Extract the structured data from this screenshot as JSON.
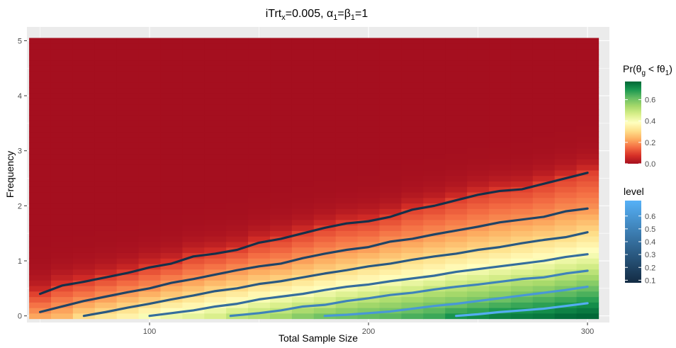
{
  "chart_data": {
    "type": "heatmap",
    "title": {
      "prefix": "iTrt",
      "prefix_sub": "x",
      "mid": "=0.005, ",
      "alpha": "α",
      "alpha_sub": "1",
      "eq": "=",
      "beta": "β",
      "beta_sub": "1",
      "suffix": "=1"
    },
    "xlabel": "Total Sample Size",
    "ylabel": "Frequency",
    "xlim": [
      44,
      310
    ],
    "ylim": [
      -0.12,
      5.25
    ],
    "x_ticks": [
      100,
      200,
      300
    ],
    "y_ticks": [
      0,
      1,
      2,
      3,
      4,
      5
    ],
    "grid": true,
    "x_values": [
      50,
      60,
      70,
      80,
      90,
      100,
      110,
      120,
      130,
      140,
      150,
      160,
      170,
      180,
      190,
      200,
      210,
      220,
      230,
      240,
      250,
      260,
      270,
      280,
      290,
      300
    ],
    "y_step": 0.1,
    "y_max": 5.0,
    "fill_legend": {
      "title": {
        "pre": "Pr(",
        "theta": "θ",
        "theta_sub": "g",
        "lt": " < ",
        "f": "f",
        "theta2": "θ",
        "theta2_sub": "1",
        "post": ")"
      },
      "ticks": [
        0.0,
        0.2,
        0.4,
        0.6
      ],
      "range": [
        0,
        0.77
      ],
      "colors": [
        "#A50F1F",
        "#D73027",
        "#F46D43",
        "#FDAE61",
        "#FEE08B",
        "#FFFFBF",
        "#D9EF8B",
        "#A6D96A",
        "#66BD63",
        "#1A9850",
        "#006837"
      ]
    },
    "contour_legend": {
      "title": "level",
      "ticks": [
        0.1,
        0.2,
        0.3,
        0.4,
        0.5,
        0.6
      ],
      "range": [
        0.08,
        0.72
      ],
      "color_low": "#132B43",
      "color_high": "#56B1F7"
    },
    "contours": [
      {
        "level": 0.1,
        "x": [
          50,
          60,
          70,
          80,
          90,
          100,
          110,
          120,
          130,
          140,
          150,
          160,
          170,
          180,
          190,
          200,
          210,
          220,
          230,
          240,
          250,
          260,
          270,
          280,
          290,
          300
        ],
        "y": [
          0.4,
          0.55,
          0.62,
          0.7,
          0.78,
          0.88,
          0.95,
          1.08,
          1.13,
          1.2,
          1.33,
          1.4,
          1.5,
          1.6,
          1.68,
          1.72,
          1.8,
          1.93,
          2.0,
          2.1,
          2.2,
          2.27,
          2.3,
          2.4,
          2.5,
          2.6
        ]
      },
      {
        "level": 0.2,
        "x": [
          50,
          60,
          70,
          80,
          90,
          100,
          110,
          120,
          130,
          140,
          150,
          160,
          170,
          180,
          190,
          200,
          210,
          220,
          230,
          240,
          250,
          260,
          270,
          280,
          290,
          300
        ],
        "y": [
          0.07,
          0.17,
          0.27,
          0.35,
          0.43,
          0.5,
          0.6,
          0.67,
          0.75,
          0.83,
          0.9,
          0.95,
          1.05,
          1.13,
          1.2,
          1.25,
          1.35,
          1.4,
          1.48,
          1.55,
          1.62,
          1.7,
          1.75,
          1.8,
          1.9,
          1.95
        ]
      },
      {
        "level": 0.3,
        "x": [
          70,
          80,
          90,
          100,
          110,
          120,
          130,
          140,
          150,
          160,
          170,
          180,
          190,
          200,
          210,
          220,
          230,
          240,
          250,
          260,
          270,
          280,
          290,
          300
        ],
        "y": [
          0.0,
          0.07,
          0.15,
          0.22,
          0.3,
          0.37,
          0.45,
          0.5,
          0.58,
          0.63,
          0.7,
          0.77,
          0.83,
          0.9,
          0.95,
          1.02,
          1.08,
          1.13,
          1.2,
          1.25,
          1.32,
          1.38,
          1.43,
          1.52
        ]
      },
      {
        "level": 0.4,
        "x": [
          100,
          110,
          120,
          130,
          140,
          150,
          160,
          170,
          180,
          190,
          200,
          210,
          220,
          230,
          240,
          250,
          260,
          270,
          280,
          290,
          300
        ],
        "y": [
          0.0,
          0.05,
          0.1,
          0.17,
          0.22,
          0.3,
          0.35,
          0.4,
          0.47,
          0.53,
          0.57,
          0.63,
          0.68,
          0.73,
          0.8,
          0.85,
          0.9,
          0.95,
          1.0,
          1.07,
          1.12
        ]
      },
      {
        "level": 0.5,
        "x": [
          137,
          150,
          160,
          170,
          180,
          190,
          200,
          210,
          220,
          230,
          240,
          250,
          260,
          270,
          280,
          290,
          300
        ],
        "y": [
          0.0,
          0.05,
          0.1,
          0.17,
          0.2,
          0.27,
          0.32,
          0.38,
          0.42,
          0.48,
          0.53,
          0.57,
          0.62,
          0.67,
          0.7,
          0.77,
          0.82
        ]
      },
      {
        "level": 0.6,
        "x": [
          180,
          190,
          200,
          210,
          220,
          230,
          240,
          250,
          260,
          270,
          280,
          290,
          300
        ],
        "y": [
          0.0,
          0.02,
          0.05,
          0.08,
          0.13,
          0.18,
          0.22,
          0.27,
          0.32,
          0.37,
          0.42,
          0.47,
          0.53
        ]
      },
      {
        "level": 0.7,
        "x": [
          240,
          250,
          260,
          270,
          280,
          290,
          300
        ],
        "y": [
          0.0,
          0.03,
          0.07,
          0.1,
          0.13,
          0.18,
          0.23
        ]
      }
    ]
  }
}
